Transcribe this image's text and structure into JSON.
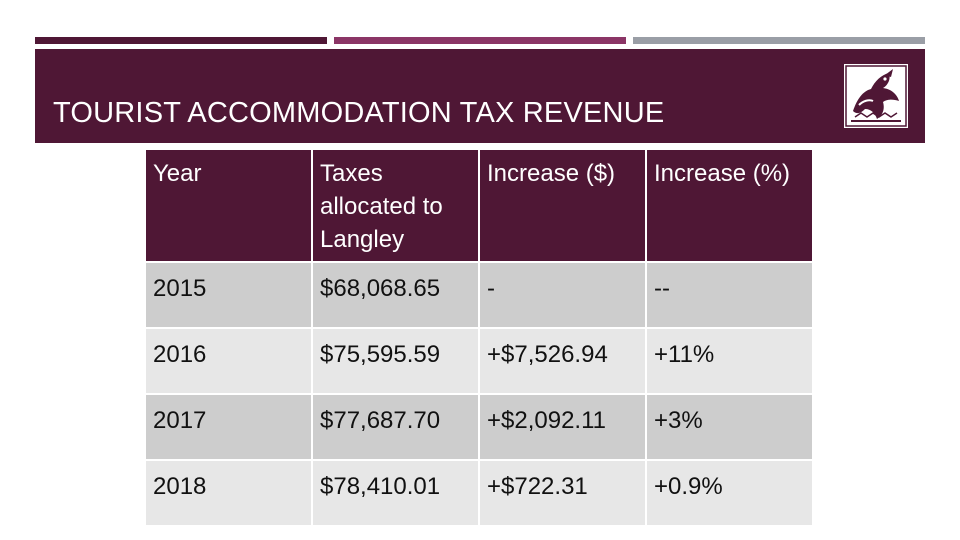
{
  "slide": {
    "title": "TOURIST ACCOMMODATION TAX REVENUE"
  },
  "logo": {
    "icon": "heraldic-bird-logo-icon"
  },
  "table": {
    "headers": [
      "Year",
      "Taxes allocated to Langley",
      "Increase ($)",
      "Increase (%)"
    ],
    "rows": [
      [
        "2015",
        "$68,068.65",
        "-",
        "--"
      ],
      [
        "2016",
        "$75,595.59",
        "+$7,526.94",
        "+11%"
      ],
      [
        "2017",
        "$77,687.70",
        "+$2,092.11",
        "+3%"
      ],
      [
        "2018",
        "$78,410.01",
        "+$722.31",
        "+0.9%"
      ]
    ]
  },
  "colors": {
    "brand": "#4f1735",
    "accent": "#8b3566",
    "gray": "#9a9ea6",
    "row_dark": "#cdcdcd",
    "row_light": "#e7e7e7"
  }
}
